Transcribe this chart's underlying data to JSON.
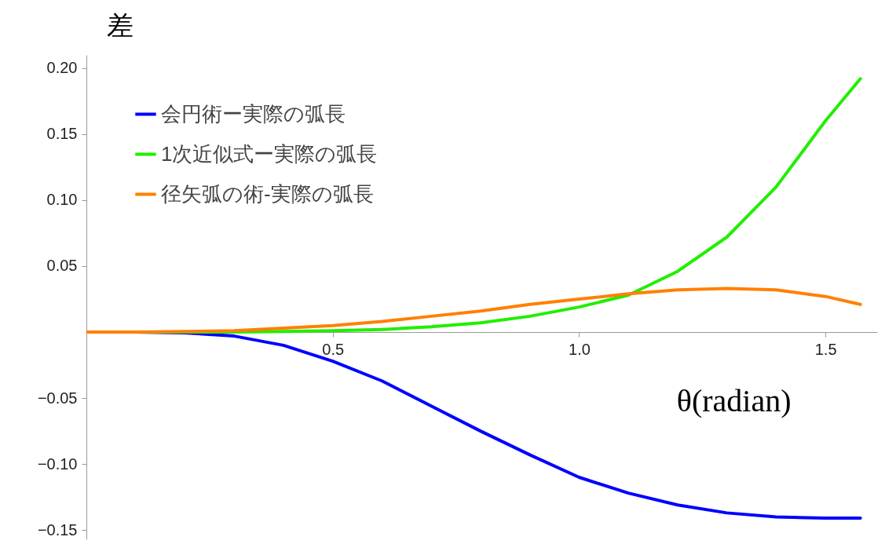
{
  "chart_data": {
    "type": "line",
    "xlabel": "θ(radian)",
    "ylabel": "差",
    "xlim": [
      0,
      1.605
    ],
    "ylim": [
      -0.157,
      0.21
    ],
    "xticks": [
      {
        "value": 0.5,
        "label": "0.5"
      },
      {
        "value": 1,
        "label": "1.0"
      },
      {
        "value": 1.5,
        "label": "1.5"
      }
    ],
    "yticks": [
      {
        "value": -0.15,
        "label": "−0.15"
      },
      {
        "value": -0.1,
        "label": "−0.10"
      },
      {
        "value": -0.05,
        "label": "−0.05"
      },
      {
        "value": 0.05,
        "label": "0.05"
      },
      {
        "value": 0.1,
        "label": "0.10"
      },
      {
        "value": 0.15,
        "label": "0.15"
      },
      {
        "value": 0.2,
        "label": "0.20"
      }
    ],
    "grid": false,
    "legend": "top left",
    "marker": "none",
    "line_style": "solid",
    "x": [
      0,
      0.1,
      0.2,
      0.3,
      0.4,
      0.5,
      0.6,
      0.7,
      0.8,
      0.9,
      1.0,
      1.1,
      1.2,
      1.3,
      1.4,
      1.5,
      1.571
    ],
    "series": [
      {
        "name": "会円術ー実際の弧長",
        "color": "#0000ff",
        "values": [
          0,
          0,
          -0.0005,
          -0.003,
          -0.01,
          -0.022,
          -0.037,
          -0.056,
          -0.075,
          -0.093,
          -0.11,
          -0.122,
          -0.131,
          -0.137,
          -0.14,
          -0.141,
          -0.141
        ]
      },
      {
        "name": "1次近似式ー実際の弧長",
        "color": "#22ee00",
        "values": [
          0,
          0,
          0,
          0,
          0.0005,
          0.001,
          0.002,
          0.004,
          0.007,
          0.012,
          0.019,
          0.028,
          0.046,
          0.072,
          0.11,
          0.16,
          0.192
        ]
      },
      {
        "name": "径矢弧の術-実際の弧長",
        "color": "#ff8000",
        "values": [
          0,
          0,
          0.0005,
          0.001,
          0.003,
          0.005,
          0.008,
          0.012,
          0.016,
          0.021,
          0.025,
          0.029,
          0.032,
          0.033,
          0.032,
          0.027,
          0.021
        ]
      }
    ]
  }
}
